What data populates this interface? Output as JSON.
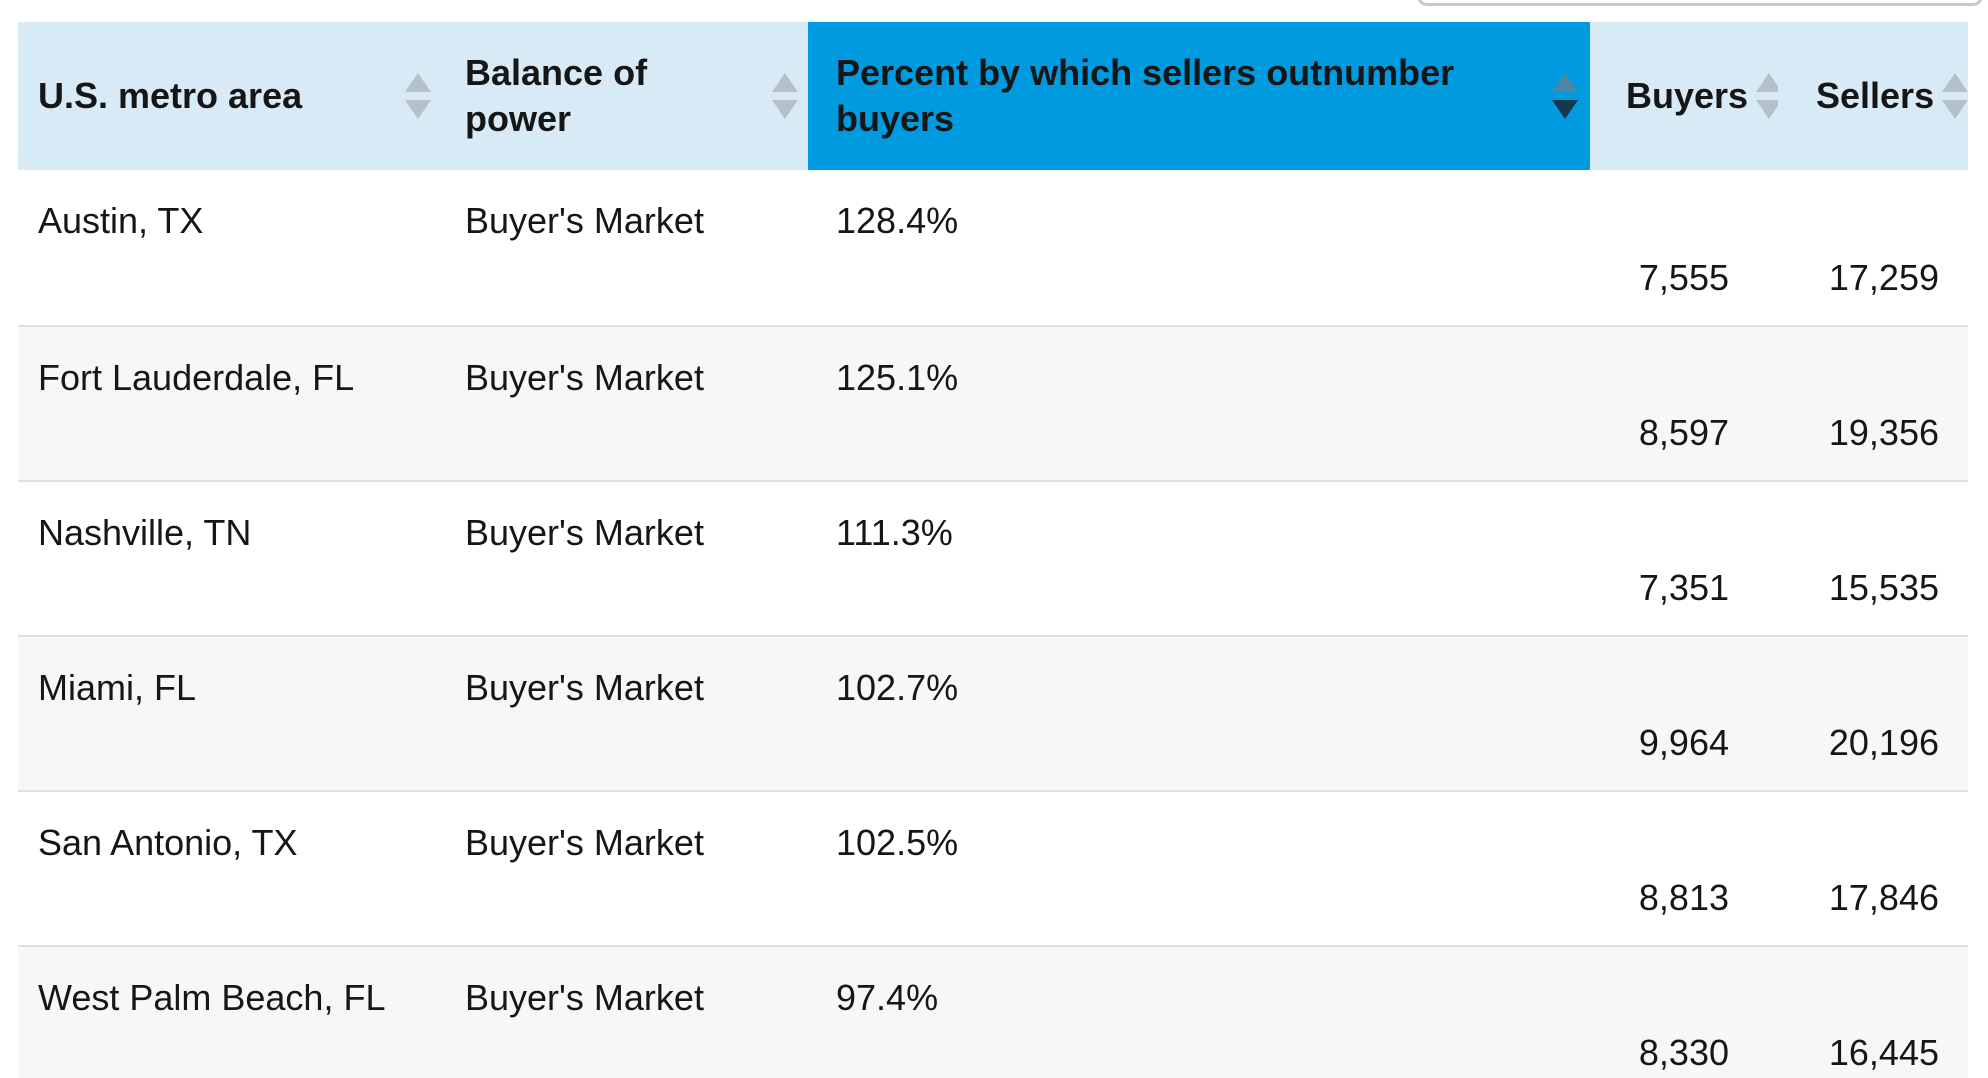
{
  "colors": {
    "header_bg": "#d8eaf5",
    "sorted_header_bg": "#009ade",
    "row_bg": "#ffffff",
    "row_alt_bg": "#f7f7f5",
    "row_divider": "#e0e0de",
    "text": "#161616",
    "sort_icon_inactive": "#b6c0c8",
    "sort_icon_active_up": "#4d86a5",
    "sort_icon_active_down": "#14384c"
  },
  "table": {
    "columns": [
      {
        "key": "metro",
        "label": "U.S. metro area",
        "sortable": true,
        "sorted": false
      },
      {
        "key": "balance",
        "label": "Balance of power",
        "sortable": true,
        "sorted": false
      },
      {
        "key": "percent",
        "label": "Percent by which sellers outnumber buyers",
        "sortable": true,
        "sorted": true,
        "sort_direction": "desc"
      },
      {
        "key": "buyers",
        "label": "Buyers",
        "sortable": true,
        "sorted": false
      },
      {
        "key": "sellers",
        "label": "Sellers",
        "sortable": true,
        "sorted": false
      }
    ],
    "rows": [
      {
        "metro": "Austin, TX",
        "balance": "Buyer's Market",
        "percent": "128.4%",
        "buyers": "7,555",
        "sellers": "17,259"
      },
      {
        "metro": "Fort Lauderdale, FL",
        "balance": "Buyer's Market",
        "percent": "125.1%",
        "buyers": "8,597",
        "sellers": "19,356"
      },
      {
        "metro": "Nashville, TN",
        "balance": "Buyer's Market",
        "percent": "111.3%",
        "buyers": "7,351",
        "sellers": "15,535"
      },
      {
        "metro": "Miami, FL",
        "balance": "Buyer's Market",
        "percent": "102.7%",
        "buyers": "9,964",
        "sellers": "20,196"
      },
      {
        "metro": "San Antonio, TX",
        "balance": "Buyer's Market",
        "percent": "102.5%",
        "buyers": "8,813",
        "sellers": "17,846"
      },
      {
        "metro": "West Palm Beach, FL",
        "balance": "Buyer's Market",
        "percent": "97.4%",
        "buyers": "8,330",
        "sellers": "16,445"
      }
    ]
  }
}
